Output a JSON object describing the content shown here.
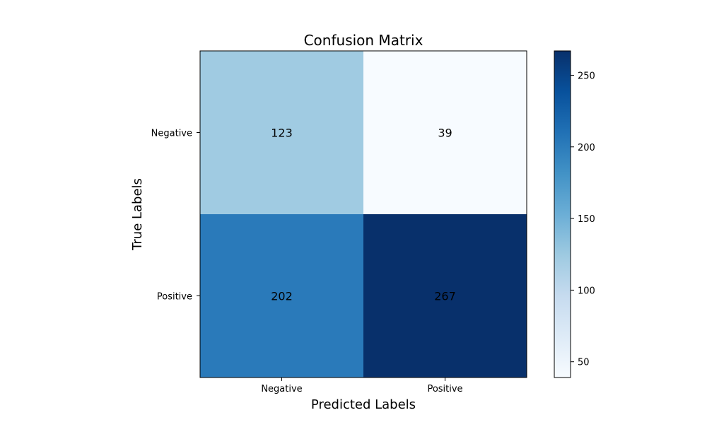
{
  "chart_data": {
    "type": "heatmap",
    "title": "Confusion Matrix",
    "xlabel": "Predicted Labels",
    "ylabel": "True Labels",
    "x_categories": [
      "Negative",
      "Positive"
    ],
    "y_categories": [
      "Negative",
      "Positive"
    ],
    "values": [
      [
        123,
        39
      ],
      [
        202,
        267
      ]
    ],
    "colormap": "Blues",
    "colorbar": {
      "range": [
        39,
        267
      ],
      "ticks": [
        50,
        100,
        150,
        200,
        250
      ]
    },
    "grid": false
  }
}
